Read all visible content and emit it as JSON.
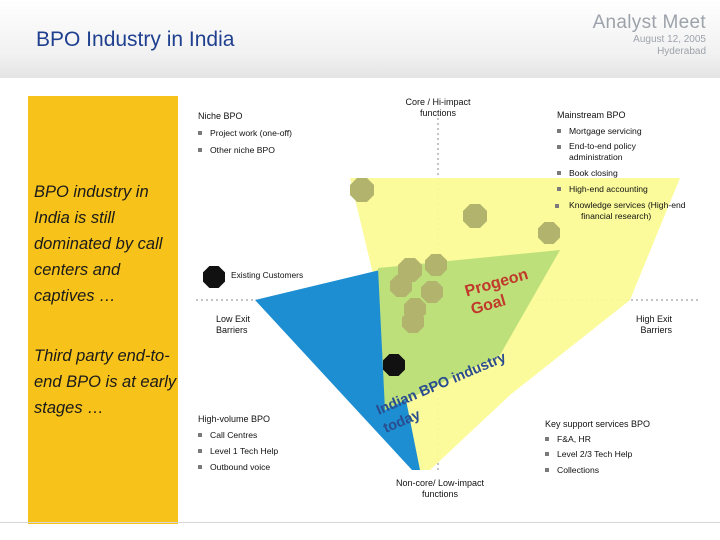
{
  "header": {
    "title": "BPO Industry in India",
    "brand_name": "Analyst Meet",
    "brand_date": "August 12, 2005",
    "brand_city": "Hyderabad"
  },
  "left_panel": {
    "text1": "BPO industry in India is still dominated by call centers and captives …",
    "text2": "Third party end-to-end BPO is at early stages …"
  },
  "axes": {
    "top": "Core / Hi-impact functions",
    "bottom": "Non-core/ Low-impact functions",
    "left": "Low Exit Barriers",
    "right": "High Exit Barriers"
  },
  "niche_bpo": {
    "heading": "Niche BPO",
    "items": [
      "Project work (one-off)",
      "Other niche BPO"
    ]
  },
  "mainstream_bpo": {
    "heading": "Mainstream BPO",
    "items": [
      "Mortgage servicing",
      "End-to-end policy administration",
      "Book closing",
      "High-end accounting",
      "Knowledge services (High-end financial research)"
    ]
  },
  "high_volume_bpo": {
    "heading": "High-volume BPO",
    "items": [
      "Call Centres",
      "Level 1 Tech Help",
      "Outbound voice"
    ]
  },
  "key_support": {
    "heading": "Key support services BPO",
    "items": [
      "F&A, HR",
      "Level 2/3 Tech Help",
      "Collections"
    ]
  },
  "legend": {
    "existing_customers": "Existing Customers"
  },
  "labels": {
    "progeon_goal_1": "Progeon",
    "progeon_goal_2": "Goal",
    "industry_1": "Indian BPO industry",
    "industry_2": "today"
  },
  "colors": {
    "yellow_zone": "#fbfb96",
    "green_zone": "#bde07a",
    "blue_zone": "#1d8ed1",
    "octagon_fill": "#b2b46e",
    "octagon_dark": "#111111",
    "panel": "#f7c21a",
    "title": "#1f3f8f"
  }
}
